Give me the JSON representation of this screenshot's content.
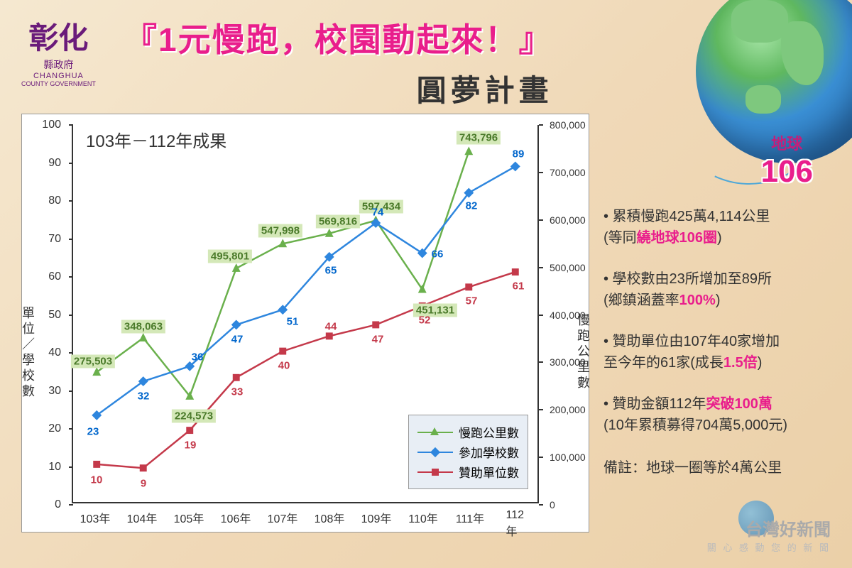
{
  "logo": {
    "main": "彰化",
    "sub1": "縣政府",
    "sub2": "CHANGHUA",
    "sub3": "COUNTY GOVERNMENT"
  },
  "title": {
    "main": "『1元慢跑，校園動起來！』",
    "sub": "圓夢計畫"
  },
  "globe": {
    "label": "地球",
    "number": "106"
  },
  "chart": {
    "title": "103年－112年成果",
    "y_left_label": "單位／學校數",
    "y_right_label": "慢跑公里數",
    "y_left": {
      "min": 0,
      "max": 100,
      "ticks": [
        0,
        10,
        20,
        30,
        40,
        50,
        60,
        70,
        80,
        90,
        100
      ]
    },
    "y_right": {
      "min": 0,
      "max": 800000,
      "ticks": [
        "0",
        "100,000",
        "200,000",
        "300,000",
        "400,000",
        "500,000",
        "600,000",
        "700,000",
        "800,000"
      ]
    },
    "x_categories": [
      "103年",
      "104年",
      "105年",
      "106年",
      "107年",
      "108年",
      "109年",
      "110年",
      "111年",
      "112年"
    ],
    "series": [
      {
        "name": "慢跑公里數",
        "color": "#6ab04c",
        "marker": "triangle",
        "axis": "right",
        "values": [
          275503,
          348063,
          224573,
          495801,
          547998,
          569816,
          597434,
          451131,
          743796,
          null
        ],
        "labels": [
          "275,503",
          "348,063",
          "224,573",
          "495,801",
          "547,998",
          "569,816",
          "597,434",
          "451,131",
          "743,796",
          ""
        ]
      },
      {
        "name": "參加學校數",
        "color": "#2e86de",
        "marker": "diamond",
        "axis": "left",
        "values": [
          23,
          32,
          36,
          47,
          51,
          65,
          74,
          66,
          82,
          89
        ],
        "labels": [
          "23",
          "32",
          "36",
          "47",
          "51",
          "65",
          "74",
          "66",
          "82",
          "89"
        ]
      },
      {
        "name": "贊助單位數",
        "color": "#c4394a",
        "marker": "square",
        "axis": "left",
        "values": [
          10,
          9,
          19,
          33,
          40,
          44,
          47,
          52,
          57,
          61
        ],
        "labels": [
          "10",
          "9",
          "19",
          "33",
          "40",
          "44",
          "47",
          "52",
          "57",
          "61"
        ]
      }
    ],
    "legend": [
      "慢跑公里數",
      "參加學校數",
      "贊助單位數"
    ]
  },
  "bullets": [
    {
      "pre": "• 累積慢跑425萬4,114公里\n(等同",
      "hl": "繞地球106圈",
      "post": ")"
    },
    {
      "pre": "• 學校數由23所增加至89所\n(鄉鎮涵蓋率",
      "hl": "100%",
      "post": ")"
    },
    {
      "pre": "• 贊助單位由107年40家增加\n至今年的61家(成長",
      "hl": "1.5倍",
      "post": ")"
    },
    {
      "pre": "• 贊助金額112年",
      "hl": "突破100萬",
      "post": "\n(10年累積募得704萬5,000元)"
    }
  ],
  "footnote": "備註：地球一圈等於4萬公里",
  "watermark": {
    "main": "台灣好新聞",
    "sub": "關 心 感 動 您 的 新 聞"
  },
  "colors": {
    "green": "#6ab04c",
    "blue": "#2e86de",
    "red": "#c4394a",
    "pink": "#e91e8c"
  }
}
